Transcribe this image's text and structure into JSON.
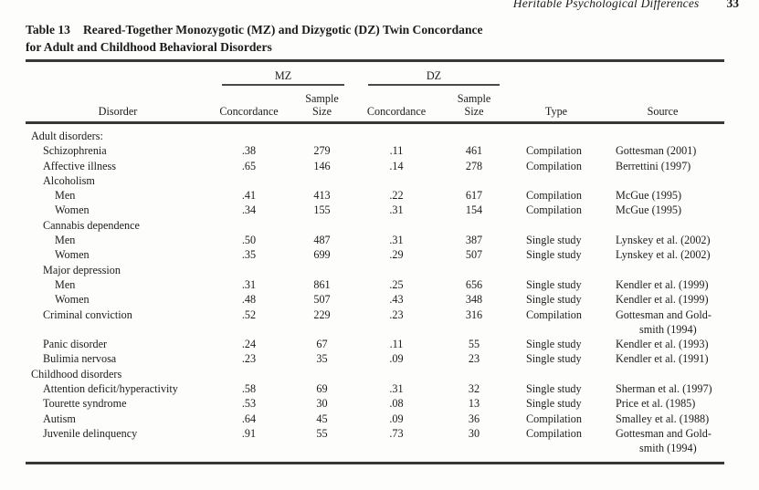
{
  "running_head": {
    "title": "Heritable Psychological Differences",
    "page_number": "33"
  },
  "table": {
    "label": "Table 13",
    "title": "Reared-Together Monozygotic (MZ) and Dizygotic (DZ) Twin Concordance\nfor Adult and Childhood Behavioral Disorders",
    "col_groups": [
      {
        "label": "MZ"
      },
      {
        "label": "DZ"
      }
    ],
    "columns": {
      "disorder": "Disorder",
      "concordance": "Concordance",
      "sample_size": "Sample\nSize",
      "type": "Type",
      "source": "Source"
    },
    "rows": [
      {
        "indent": 0,
        "disorder": "Adult disorders:",
        "mz_concordance": "",
        "mz_sample_size": "",
        "dz_concordance": "",
        "dz_sample_size": "",
        "type": "",
        "source": ""
      },
      {
        "indent": 1,
        "disorder": "Schizophrenia",
        "mz_concordance": ".38",
        "mz_sample_size": "279",
        "dz_concordance": ".11",
        "dz_sample_size": "461",
        "type": "Compilation",
        "source": "Gottesman (2001)"
      },
      {
        "indent": 1,
        "disorder": "Affective illness",
        "mz_concordance": ".65",
        "mz_sample_size": "146",
        "dz_concordance": ".14",
        "dz_sample_size": "278",
        "type": "Compilation",
        "source": "Berrettini (1997)"
      },
      {
        "indent": 1,
        "disorder": "Alcoholism",
        "mz_concordance": "",
        "mz_sample_size": "",
        "dz_concordance": "",
        "dz_sample_size": "",
        "type": "",
        "source": ""
      },
      {
        "indent": 2,
        "disorder": "Men",
        "mz_concordance": ".41",
        "mz_sample_size": "413",
        "dz_concordance": ".22",
        "dz_sample_size": "617",
        "type": "Compilation",
        "source": "McGue (1995)"
      },
      {
        "indent": 2,
        "disorder": "Women",
        "mz_concordance": ".34",
        "mz_sample_size": "155",
        "dz_concordance": ".31",
        "dz_sample_size": "154",
        "type": "Compilation",
        "source": "McGue (1995)"
      },
      {
        "indent": 1,
        "disorder": "Cannabis dependence",
        "mz_concordance": "",
        "mz_sample_size": "",
        "dz_concordance": "",
        "dz_sample_size": "",
        "type": "",
        "source": ""
      },
      {
        "indent": 2,
        "disorder": "Men",
        "mz_concordance": ".50",
        "mz_sample_size": "487",
        "dz_concordance": ".31",
        "dz_sample_size": "387",
        "type": "Single study",
        "source": "Lynskey et al. (2002)"
      },
      {
        "indent": 2,
        "disorder": "Women",
        "mz_concordance": ".35",
        "mz_sample_size": "699",
        "dz_concordance": ".29",
        "dz_sample_size": "507",
        "type": "Single study",
        "source": "Lynskey et al. (2002)"
      },
      {
        "indent": 1,
        "disorder": "Major depression",
        "mz_concordance": "",
        "mz_sample_size": "",
        "dz_concordance": "",
        "dz_sample_size": "",
        "type": "",
        "source": ""
      },
      {
        "indent": 2,
        "disorder": "Men",
        "mz_concordance": ".31",
        "mz_sample_size": "861",
        "dz_concordance": ".25",
        "dz_sample_size": "656",
        "type": "Single study",
        "source": "Kendler et al. (1999)"
      },
      {
        "indent": 2,
        "disorder": "Women",
        "mz_concordance": ".48",
        "mz_sample_size": "507",
        "dz_concordance": ".43",
        "dz_sample_size": "348",
        "type": "Single study",
        "source": "Kendler et al. (1999)"
      },
      {
        "indent": 1,
        "disorder": "Criminal conviction",
        "mz_concordance": ".52",
        "mz_sample_size": "229",
        "dz_concordance": ".23",
        "dz_sample_size": "316",
        "type": "Compilation",
        "source": "Gottesman and Gold-\nsmith (1994)"
      },
      {
        "indent": 1,
        "disorder": "Panic disorder",
        "mz_concordance": ".24",
        "mz_sample_size": "67",
        "dz_concordance": ".11",
        "dz_sample_size": "55",
        "type": "Single study",
        "source": "Kendler et al. (1993)"
      },
      {
        "indent": 1,
        "disorder": "Bulimia nervosa",
        "mz_concordance": ".23",
        "mz_sample_size": "35",
        "dz_concordance": ".09",
        "dz_sample_size": "23",
        "type": "Single study",
        "source": "Kendler et al. (1991)"
      },
      {
        "indent": 0,
        "disorder": "Childhood disorders",
        "mz_concordance": "",
        "mz_sample_size": "",
        "dz_concordance": "",
        "dz_sample_size": "",
        "type": "",
        "source": ""
      },
      {
        "indent": 1,
        "disorder": "Attention deficit/hyperactivity",
        "mz_concordance": ".58",
        "mz_sample_size": "69",
        "dz_concordance": ".31",
        "dz_sample_size": "32",
        "type": "Single study",
        "source": "Sherman et al. (1997)"
      },
      {
        "indent": 1,
        "disorder": "Tourette syndrome",
        "mz_concordance": ".53",
        "mz_sample_size": "30",
        "dz_concordance": ".08",
        "dz_sample_size": "13",
        "type": "Single study",
        "source": "Price et al. (1985)"
      },
      {
        "indent": 1,
        "disorder": "Autism",
        "mz_concordance": ".64",
        "mz_sample_size": "45",
        "dz_concordance": ".09",
        "dz_sample_size": "36",
        "type": "Compilation",
        "source": "Smalley et al. (1988)"
      },
      {
        "indent": 1,
        "disorder": "Juvenile delinquency",
        "mz_concordance": ".91",
        "mz_sample_size": "55",
        "dz_concordance": ".73",
        "dz_sample_size": "30",
        "type": "Compilation",
        "source": "Gottesman and Gold-\nsmith (1994)"
      }
    ]
  }
}
